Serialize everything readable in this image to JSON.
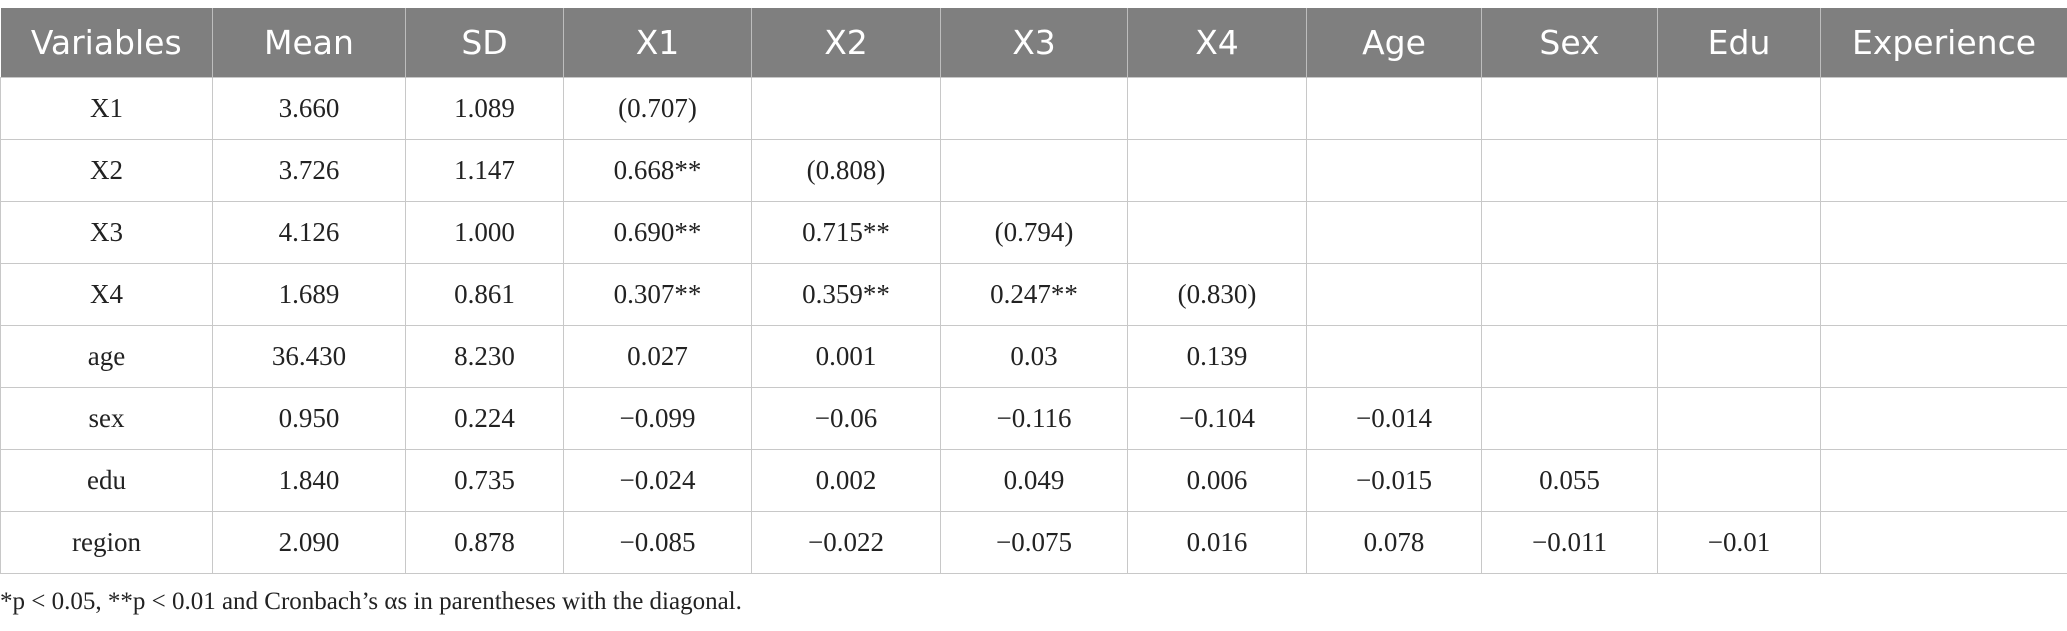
{
  "table": {
    "header": [
      "Variables",
      "Mean",
      "SD",
      "X1",
      "X2",
      "X3",
      "X4",
      "Age",
      "Sex",
      "Edu",
      "Experience"
    ],
    "rows": [
      [
        "X1",
        "3.660",
        "1.089",
        "(0.707)"
      ],
      [
        "X2",
        "3.726",
        "1.147",
        "0.668**",
        "(0.808)"
      ],
      [
        "X3",
        "4.126",
        "1.000",
        "0.690**",
        "0.715**",
        "(0.794)"
      ],
      [
        "X4",
        "1.689",
        "0.861",
        "0.307**",
        "0.359**",
        "0.247**",
        "(0.830)"
      ],
      [
        "age",
        "36.430",
        "8.230",
        "0.027",
        "0.001",
        "0.03",
        "0.139"
      ],
      [
        "sex",
        "0.950",
        "0.224",
        "−0.099",
        "−0.06",
        "−0.116",
        "−0.104",
        "−0.014"
      ],
      [
        "edu",
        "1.840",
        "0.735",
        "−0.024",
        "0.002",
        "0.049",
        "0.006",
        "−0.015",
        "0.055"
      ],
      [
        "region",
        "2.090",
        "0.878",
        "−0.085",
        "−0.022",
        "−0.075",
        "0.016",
        "0.078",
        "−0.011",
        "−0.01"
      ]
    ]
  },
  "footnote": "*p < 0.05, **p < 0.01 and Cronbach’s αs in parentheses with the diagonal."
}
